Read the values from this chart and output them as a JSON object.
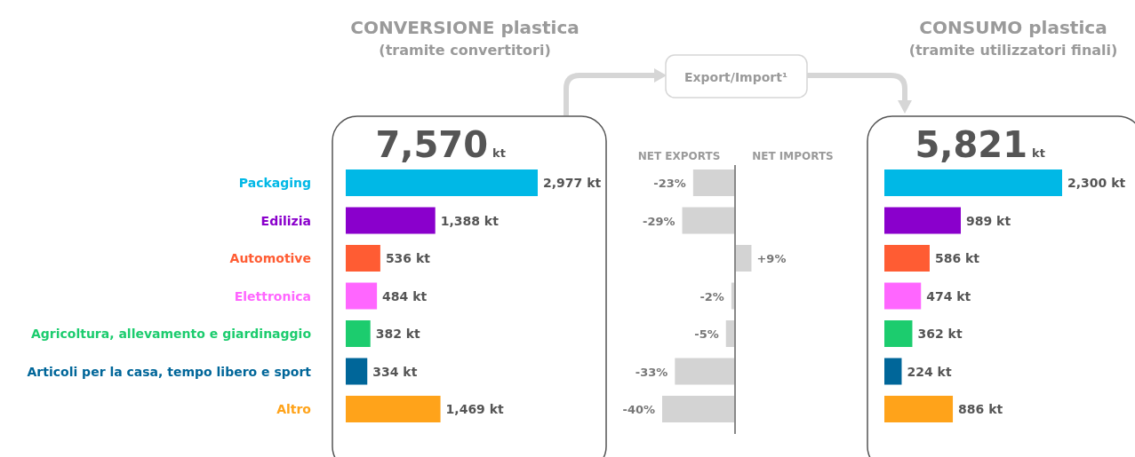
{
  "chart_data": [
    {
      "type": "bar",
      "orientation": "horizontal",
      "title": "CONVERSIONE plastica",
      "subtitle": "(tramite convertitori)",
      "categories": [
        "Packaging",
        "Edilizia",
        "Automotive",
        "Elettronica",
        "Agricoltura, allevamento e giardinaggio",
        "Articoli per la casa, tempo libero e sport",
        "Altro"
      ],
      "values": [
        2977,
        1388,
        536,
        484,
        382,
        334,
        1469
      ],
      "colors": [
        "#00b8e6",
        "#8a00cc",
        "#ff5c33",
        "#ff66ff",
        "#1ccc6e",
        "#006699",
        "#ffa31a"
      ],
      "value_labels": [
        "2,977 kt",
        "1,388 kt",
        "536 kt",
        "484 kt",
        "382 kt",
        "334 kt",
        "1,469 kt"
      ],
      "annotations": [
        "7,570",
        "kt"
      ]
    },
    {
      "type": "bar",
      "orientation": "horizontal",
      "categories": [
        null,
        null,
        null,
        null,
        null,
        null,
        null
      ],
      "values": [
        -23,
        -29,
        9,
        -2,
        -5,
        -33,
        -40
      ],
      "color": "#d3d3d3",
      "value_labels": [
        "-23%",
        "-29%",
        "+9%",
        "-2%",
        "-5%",
        "-33%",
        "-40%"
      ],
      "annotations": [
        "Export/Import¹",
        "NET EXPORTS",
        "NET IMPORTS"
      ]
    },
    {
      "type": "bar",
      "orientation": "horizontal",
      "title": "CONSUMO plastica",
      "subtitle": "(tramite utilizzatori finali)",
      "categories": [
        null,
        null,
        null,
        null,
        null,
        null,
        null
      ],
      "values": [
        2300,
        989,
        586,
        474,
        362,
        224,
        886
      ],
      "colors": [
        "#00b8e6",
        "#8a00cc",
        "#ff5c33",
        "#ff66ff",
        "#1ccc6e",
        "#006699",
        "#ffa31a"
      ],
      "value_labels": [
        "2,300 kt",
        "989 kt",
        "586 kt",
        "474 kt",
        "362 kt",
        "224 kt",
        "886 kt"
      ],
      "annotations": [
        "5,821",
        "kt"
      ]
    }
  ]
}
